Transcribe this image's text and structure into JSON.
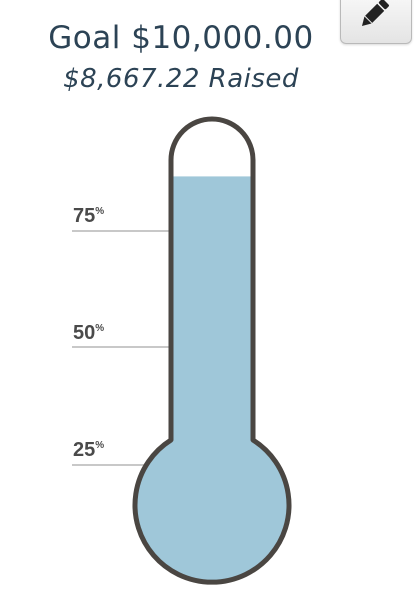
{
  "header": {
    "goal": "Goal $10,000.00",
    "raised": "$8,667.22 Raised"
  },
  "toolbar": {
    "edit_icon": "pencil-icon"
  },
  "thermometer": {
    "raised_fraction": 0.8667,
    "ticks": [
      {
        "value": "75",
        "unit": "%"
      },
      {
        "value": "50",
        "unit": "%"
      },
      {
        "value": "25",
        "unit": "%"
      }
    ]
  },
  "colors": {
    "title": "#2c4355",
    "fill": "#9fc7d9",
    "outline": "#4a4642",
    "tick": "#4a4a4a",
    "tick_line": "#c8c8c8"
  }
}
